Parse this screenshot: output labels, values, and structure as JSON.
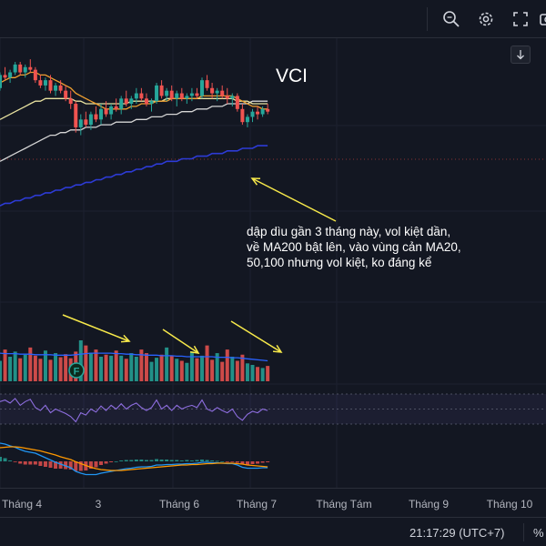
{
  "toolbar": {
    "icons": [
      "zoom-search-icon",
      "gear-icon",
      "fullscreen-icon",
      "camera-icon"
    ],
    "scroll_button": "scroll-down-icon"
  },
  "chart_title": "VCI",
  "annotation": {
    "lines": [
      "dập dìu gần 3 tháng này, vol kiệt dần,",
      "về MA200 bật lên, vào vùng cản MA20,",
      "50,100 nhưng vol kiệt, ko đáng kể"
    ],
    "color": "#ffffff",
    "arrow_color": "#f7e94a"
  },
  "volume_marker": "F",
  "status": {
    "clock": "21:17:29 (UTC+7)",
    "percent": "%"
  },
  "colors": {
    "background": "#131722",
    "up": "#26a69a",
    "down": "#ef5350",
    "ma20": "#f0a030",
    "ma50": "#e8e2a0",
    "ma100": "#d5d5d5",
    "ma200": "#2d3bd6",
    "rsi": "#8e6ee0",
    "macd": "#2196f3",
    "signal": "#ff9800",
    "arrow": "#f7e94a"
  },
  "chart_data": {
    "type": "candlestick",
    "title": "VCI",
    "x_tick_labels": [
      "Tháng 4",
      "3",
      "Tháng 6",
      "Tháng 7",
      "Tháng Tám",
      "Tháng 9",
      "Tháng 10"
    ],
    "price_series": {
      "candles": [
        [
          42,
          48,
          41,
          47
        ],
        [
          47,
          50,
          45,
          46
        ],
        [
          46,
          49,
          44,
          48
        ],
        [
          48,
          52,
          47,
          51
        ],
        [
          51,
          52,
          47,
          48
        ],
        [
          48,
          51,
          46,
          50
        ],
        [
          50,
          53,
          48,
          49
        ],
        [
          49,
          50,
          44,
          45
        ],
        [
          45,
          47,
          42,
          43
        ],
        [
          43,
          46,
          41,
          45
        ],
        [
          45,
          47,
          40,
          41
        ],
        [
          41,
          44,
          39,
          43
        ],
        [
          43,
          45,
          40,
          41
        ],
        [
          41,
          43,
          37,
          38
        ],
        [
          38,
          41,
          34,
          36
        ],
        [
          36,
          37,
          25,
          27
        ],
        [
          27,
          32,
          24,
          30
        ],
        [
          30,
          33,
          27,
          28
        ],
        [
          28,
          33,
          26,
          32
        ],
        [
          32,
          35,
          29,
          30
        ],
        [
          30,
          36,
          28,
          34
        ],
        [
          34,
          37,
          31,
          32
        ],
        [
          32,
          36,
          30,
          35
        ],
        [
          35,
          38,
          33,
          34
        ],
        [
          34,
          39,
          32,
          38
        ],
        [
          38,
          41,
          35,
          36
        ],
        [
          36,
          39,
          34,
          38
        ],
        [
          38,
          42,
          36,
          40
        ],
        [
          40,
          42,
          37,
          38
        ],
        [
          38,
          40,
          35,
          36
        ],
        [
          36,
          38,
          33,
          37
        ],
        [
          37,
          44,
          36,
          43
        ],
        [
          43,
          45,
          38,
          39
        ],
        [
          39,
          42,
          37,
          41
        ],
        [
          41,
          43,
          37,
          38
        ],
        [
          38,
          41,
          35,
          40
        ],
        [
          40,
          42,
          37,
          38
        ],
        [
          38,
          40,
          36,
          39
        ],
        [
          39,
          42,
          37,
          40
        ],
        [
          40,
          42,
          38,
          39
        ],
        [
          39,
          46,
          38,
          45
        ],
        [
          45,
          47,
          41,
          42
        ],
        [
          42,
          44,
          38,
          40
        ],
        [
          40,
          42,
          37,
          41
        ],
        [
          41,
          43,
          38,
          39
        ],
        [
          39,
          42,
          36,
          38
        ],
        [
          38,
          40,
          35,
          39
        ],
        [
          39,
          40,
          33,
          34
        ],
        [
          34,
          36,
          28,
          29
        ],
        [
          29,
          32,
          27,
          31
        ],
        [
          31,
          34,
          29,
          33
        ],
        [
          33,
          35,
          30,
          32
        ],
        [
          32,
          35,
          31,
          34
        ],
        [
          34,
          36,
          32,
          33
        ]
      ],
      "ma20": [
        44,
        45,
        46,
        46,
        47,
        47,
        48,
        48,
        47,
        47,
        46,
        45,
        44,
        43,
        42,
        40,
        39,
        38,
        37,
        36,
        35,
        34,
        34,
        34,
        34,
        34,
        35,
        35,
        36,
        36,
        36,
        37,
        37,
        37,
        38,
        38,
        38,
        38,
        38,
        38,
        39,
        39,
        39,
        39,
        39,
        39,
        39,
        38,
        37,
        36,
        35,
        35,
        34,
        34
      ],
      "ma50": [
        30,
        31,
        32,
        33,
        34,
        35,
        36,
        37,
        37,
        38,
        38,
        38,
        38,
        38,
        38,
        37,
        37,
        36,
        36,
        36,
        36,
        36,
        36,
        36,
        36,
        36,
        37,
        37,
        37,
        37,
        37,
        37,
        37,
        38,
        38,
        38,
        38,
        38,
        38,
        38,
        38,
        38,
        38,
        38,
        38,
        38,
        38,
        37,
        37,
        37,
        36,
        36,
        36,
        36
      ],
      "ma100": [
        14,
        15,
        16,
        17,
        18,
        19,
        20,
        21,
        22,
        23,
        24,
        24,
        25,
        25,
        26,
        26,
        26,
        27,
        27,
        27,
        28,
        28,
        28,
        29,
        29,
        29,
        29,
        30,
        30,
        30,
        31,
        31,
        31,
        32,
        32,
        32,
        33,
        33,
        33,
        34,
        34,
        34,
        35,
        35,
        35,
        36,
        36,
        36,
        36,
        36,
        37,
        37,
        37,
        37
      ],
      "ma200": [
        -3,
        -2,
        -2,
        -1,
        -1,
        0,
        0,
        1,
        1,
        2,
        2,
        3,
        3,
        4,
        4,
        5,
        5,
        6,
        6,
        7,
        7,
        8,
        8,
        9,
        9,
        10,
        10,
        11,
        11,
        12,
        12,
        13,
        13,
        14,
        14,
        14,
        15,
        15,
        15,
        16,
        16,
        16,
        17,
        17,
        17,
        18,
        18,
        18,
        19,
        19,
        19,
        20,
        20,
        20
      ]
    },
    "volume_series": {
      "values": [
        40,
        62,
        48,
        58,
        45,
        52,
        66,
        50,
        44,
        60,
        42,
        55,
        47,
        53,
        45,
        58,
        80,
        70,
        56,
        62,
        48,
        52,
        50,
        60,
        50,
        44,
        55,
        48,
        62,
        55,
        38,
        46,
        52,
        66,
        50,
        44,
        40,
        36,
        58,
        45,
        50,
        70,
        42,
        55,
        38,
        62,
        48,
        40,
        52,
        35,
        32,
        28,
        26,
        30
      ],
      "ma": [
        55,
        54,
        54,
        54,
        53,
        53,
        53,
        52,
        52,
        52,
        52,
        51,
        51,
        51,
        51,
        52,
        53,
        54,
        55,
        55,
        55,
        55,
        55,
        54,
        54,
        53,
        53,
        52,
        52,
        51,
        51,
        51,
        50,
        50,
        50,
        49,
        49,
        48,
        48,
        48,
        48,
        48,
        48,
        47,
        47,
        47,
        46,
        46,
        45,
        44,
        43,
        42,
        41,
        40
      ]
    },
    "rsi_series": {
      "values": [
        60,
        62,
        58,
        64,
        55,
        60,
        63,
        52,
        48,
        55,
        45,
        50,
        47,
        44,
        40,
        33,
        45,
        42,
        50,
        46,
        54,
        48,
        55,
        50,
        57,
        50,
        55,
        58,
        52,
        48,
        52,
        62,
        50,
        55,
        48,
        55,
        50,
        53,
        55,
        52,
        62,
        50,
        47,
        52,
        48,
        45,
        50,
        40,
        35,
        43,
        47,
        45,
        50,
        48
      ],
      "bands": [
        70,
        50,
        30
      ]
    },
    "macd_series": {
      "macd": [
        4.0,
        3.8,
        3.4,
        3.1,
        2.6,
        2.2,
        2.0,
        1.8,
        1.3,
        0.8,
        0.3,
        -0.2,
        -0.6,
        -1.0,
        -1.4,
        -2.2,
        -2.6,
        -2.9,
        -2.9,
        -2.9,
        -2.6,
        -2.4,
        -2.2,
        -2.0,
        -1.8,
        -1.6,
        -1.5,
        -1.3,
        -1.2,
        -1.2,
        -1.1,
        -0.8,
        -0.8,
        -0.7,
        -0.7,
        -0.6,
        -0.6,
        -0.5,
        -0.5,
        -0.4,
        -0.2,
        -0.2,
        -0.3,
        -0.3,
        -0.4,
        -0.5,
        -0.5,
        -0.8,
        -1.3,
        -1.5,
        -1.5,
        -1.5,
        -1.4,
        -1.4
      ],
      "signal": [
        3.0,
        3.1,
        3.2,
        3.2,
        3.1,
        2.9,
        2.7,
        2.5,
        2.3,
        2.0,
        1.7,
        1.4,
        1.0,
        0.7,
        0.4,
        -0.1,
        -0.5,
        -0.9,
        -1.3,
        -1.6,
        -1.8,
        -1.9,
        -2.0,
        -2.0,
        -2.0,
        -1.9,
        -1.8,
        -1.7,
        -1.6,
        -1.5,
        -1.4,
        -1.3,
        -1.2,
        -1.1,
        -1.0,
        -0.9,
        -0.8,
        -0.8,
        -0.7,
        -0.7,
        -0.6,
        -0.5,
        -0.5,
        -0.4,
        -0.4,
        -0.4,
        -0.4,
        -0.5,
        -0.6,
        -0.8,
        -0.9,
        -1.0,
        -1.1,
        -1.2
      ],
      "histogram": [
        1.0,
        0.7,
        0.2,
        -0.1,
        -0.5,
        -0.7,
        -0.7,
        -0.7,
        -1.0,
        -1.2,
        -1.4,
        -1.6,
        -1.6,
        -1.7,
        -1.8,
        -2.1,
        -2.1,
        -2.0,
        -1.6,
        -1.3,
        -0.8,
        -0.5,
        -0.2,
        0.0,
        0.2,
        0.3,
        0.3,
        0.4,
        0.4,
        0.3,
        0.3,
        0.5,
        0.4,
        0.4,
        0.3,
        0.3,
        0.2,
        0.3,
        0.2,
        0.3,
        0.4,
        0.3,
        0.2,
        0.1,
        0.0,
        -0.1,
        -0.1,
        -0.3,
        -0.7,
        -0.7,
        -0.6,
        -0.5,
        -0.3,
        -0.2
      ]
    }
  }
}
